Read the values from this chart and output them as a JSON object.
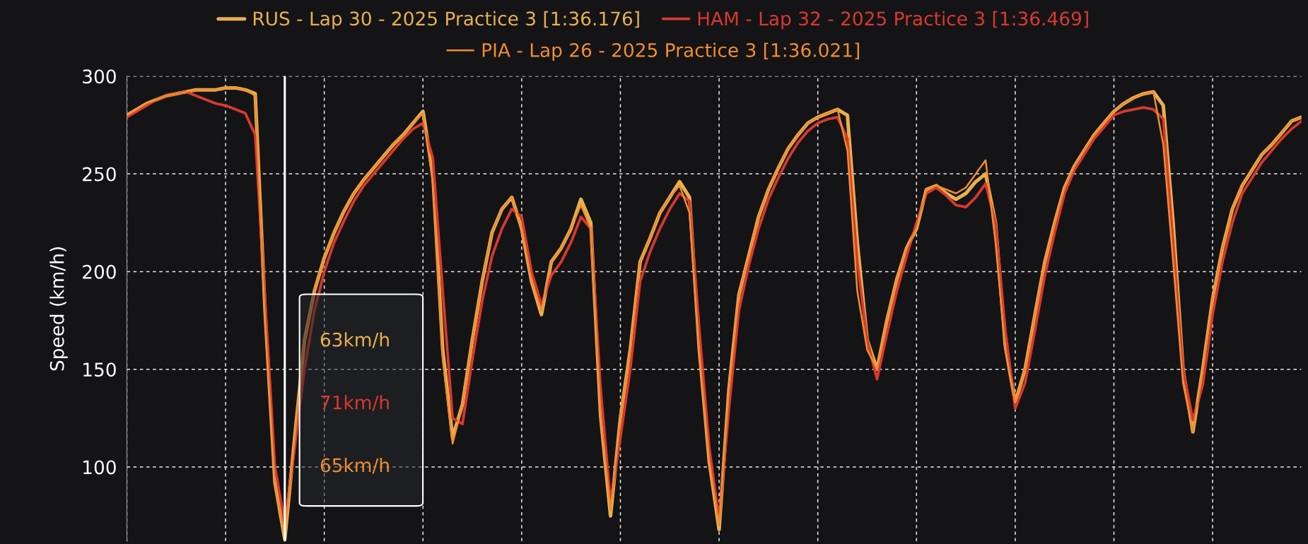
{
  "chart_data": {
    "type": "line",
    "ylabel": "Speed (km/h)",
    "categories": [
      null,
      null,
      null,
      null,
      null,
      null,
      null,
      null,
      null,
      null,
      null,
      null,
      null,
      null,
      null,
      null,
      null,
      null,
      null,
      null,
      null,
      null,
      null,
      null,
      null,
      null,
      null,
      null,
      null,
      null,
      null,
      null,
      null,
      null,
      null,
      null,
      null,
      null,
      null,
      null,
      null,
      null,
      null,
      null,
      null,
      null,
      null,
      null,
      null,
      null,
      null,
      null,
      null,
      null,
      null,
      null,
      null,
      null,
      null,
      null,
      null,
      null,
      null,
      null,
      null,
      null,
      null,
      null,
      null,
      null,
      null,
      null,
      null,
      null,
      null,
      null,
      null,
      null,
      null,
      null,
      null,
      null,
      null,
      null,
      null,
      null,
      null,
      null,
      null,
      null,
      null,
      null,
      null,
      null,
      null,
      null,
      null,
      null,
      null,
      null,
      null,
      null,
      null,
      null,
      null,
      null,
      null,
      null,
      null,
      null,
      null,
      null,
      null,
      null,
      null,
      null,
      null,
      null,
      null,
      null
    ],
    "series": [
      {
        "name": "RUS - Lap 30 - 2025 Practice 3 [1:36.176]",
        "color": "#e8b04e",
        "values": [
          280,
          283,
          286,
          288,
          290,
          291,
          292,
          293,
          293,
          293,
          294,
          294,
          293,
          291,
          180,
          92,
          63,
          115,
          165,
          190,
          207,
          220,
          231,
          240,
          247,
          253,
          259,
          265,
          270,
          276,
          282,
          250,
          160,
          115,
          132,
          165,
          195,
          220,
          232,
          238,
          222,
          195,
          178,
          205,
          212,
          222,
          237,
          225,
          126,
          75,
          125,
          160,
          205,
          217,
          230,
          238,
          246,
          238,
          160,
          103,
          68,
          140,
          188,
          208,
          228,
          242,
          253,
          263,
          270,
          276,
          279,
          281,
          283,
          280,
          215,
          165,
          150,
          175,
          196,
          212,
          222,
          242,
          244,
          240,
          237,
          240,
          246,
          250,
          225,
          162,
          133,
          150,
          178,
          205,
          225,
          243,
          254,
          262,
          270,
          276,
          282,
          286,
          289,
          291,
          292,
          285,
          225,
          150,
          118,
          150,
          186,
          212,
          232,
          244,
          252,
          260,
          265,
          271,
          277,
          279
        ]
      },
      {
        "name": "HAM - Lap 32 - 2025 Practice 3 [1:36.469]",
        "color": "#d8392e",
        "values": [
          279,
          282,
          285,
          288,
          290,
          291,
          292,
          290,
          288,
          286,
          285,
          283,
          281,
          270,
          185,
          100,
          71,
          110,
          150,
          180,
          200,
          215,
          226,
          236,
          244,
          250,
          256,
          262,
          268,
          273,
          276,
          258,
          190,
          125,
          122,
          155,
          185,
          208,
          222,
          232,
          228,
          200,
          183,
          198,
          205,
          215,
          228,
          222,
          140,
          82,
          115,
          150,
          195,
          210,
          222,
          232,
          240,
          236,
          170,
          110,
          73,
          130,
          180,
          203,
          222,
          237,
          248,
          258,
          266,
          272,
          276,
          278,
          279,
          268,
          205,
          165,
          145,
          168,
          190,
          208,
          225,
          240,
          243,
          239,
          234,
          233,
          238,
          245,
          225,
          170,
          130,
          143,
          170,
          198,
          220,
          240,
          252,
          260,
          268,
          274,
          280,
          282,
          283,
          284,
          283,
          278,
          215,
          150,
          124,
          142,
          178,
          205,
          225,
          240,
          248,
          256,
          262,
          268,
          273,
          277
        ]
      },
      {
        "name": "PIA - Lap 26 - 2025 Practice 3 [1:36.021]",
        "color": "#f08d30",
        "values": [
          280,
          283,
          286,
          288,
          290,
          291,
          292,
          293,
          293,
          293,
          294,
          294,
          293,
          290,
          175,
          90,
          65,
          115,
          165,
          190,
          207,
          220,
          231,
          240,
          247,
          253,
          259,
          265,
          270,
          276,
          281,
          245,
          155,
          112,
          132,
          165,
          195,
          220,
          232,
          238,
          222,
          195,
          180,
          205,
          212,
          222,
          234,
          222,
          126,
          78,
          125,
          160,
          205,
          217,
          230,
          238,
          244,
          230,
          158,
          103,
          70,
          140,
          188,
          208,
          228,
          242,
          253,
          263,
          270,
          276,
          279,
          281,
          283,
          262,
          190,
          160,
          150,
          175,
          196,
          212,
          222,
          242,
          244,
          242,
          240,
          243,
          250,
          257,
          215,
          160,
          133,
          150,
          178,
          205,
          225,
          243,
          254,
          262,
          270,
          276,
          282,
          286,
          289,
          291,
          292,
          265,
          205,
          143,
          118,
          150,
          186,
          212,
          232,
          244,
          252,
          260,
          265,
          271,
          277,
          279
        ]
      }
    ],
    "ylim": [
      62,
      300
    ],
    "yticks": [
      100,
      150,
      200,
      250,
      300
    ],
    "tick_labels": "y",
    "grid": true,
    "legend": "top",
    "line_style": "solid",
    "annotations": [
      "63km/h",
      "71km/h",
      "65km/h"
    ]
  }
}
